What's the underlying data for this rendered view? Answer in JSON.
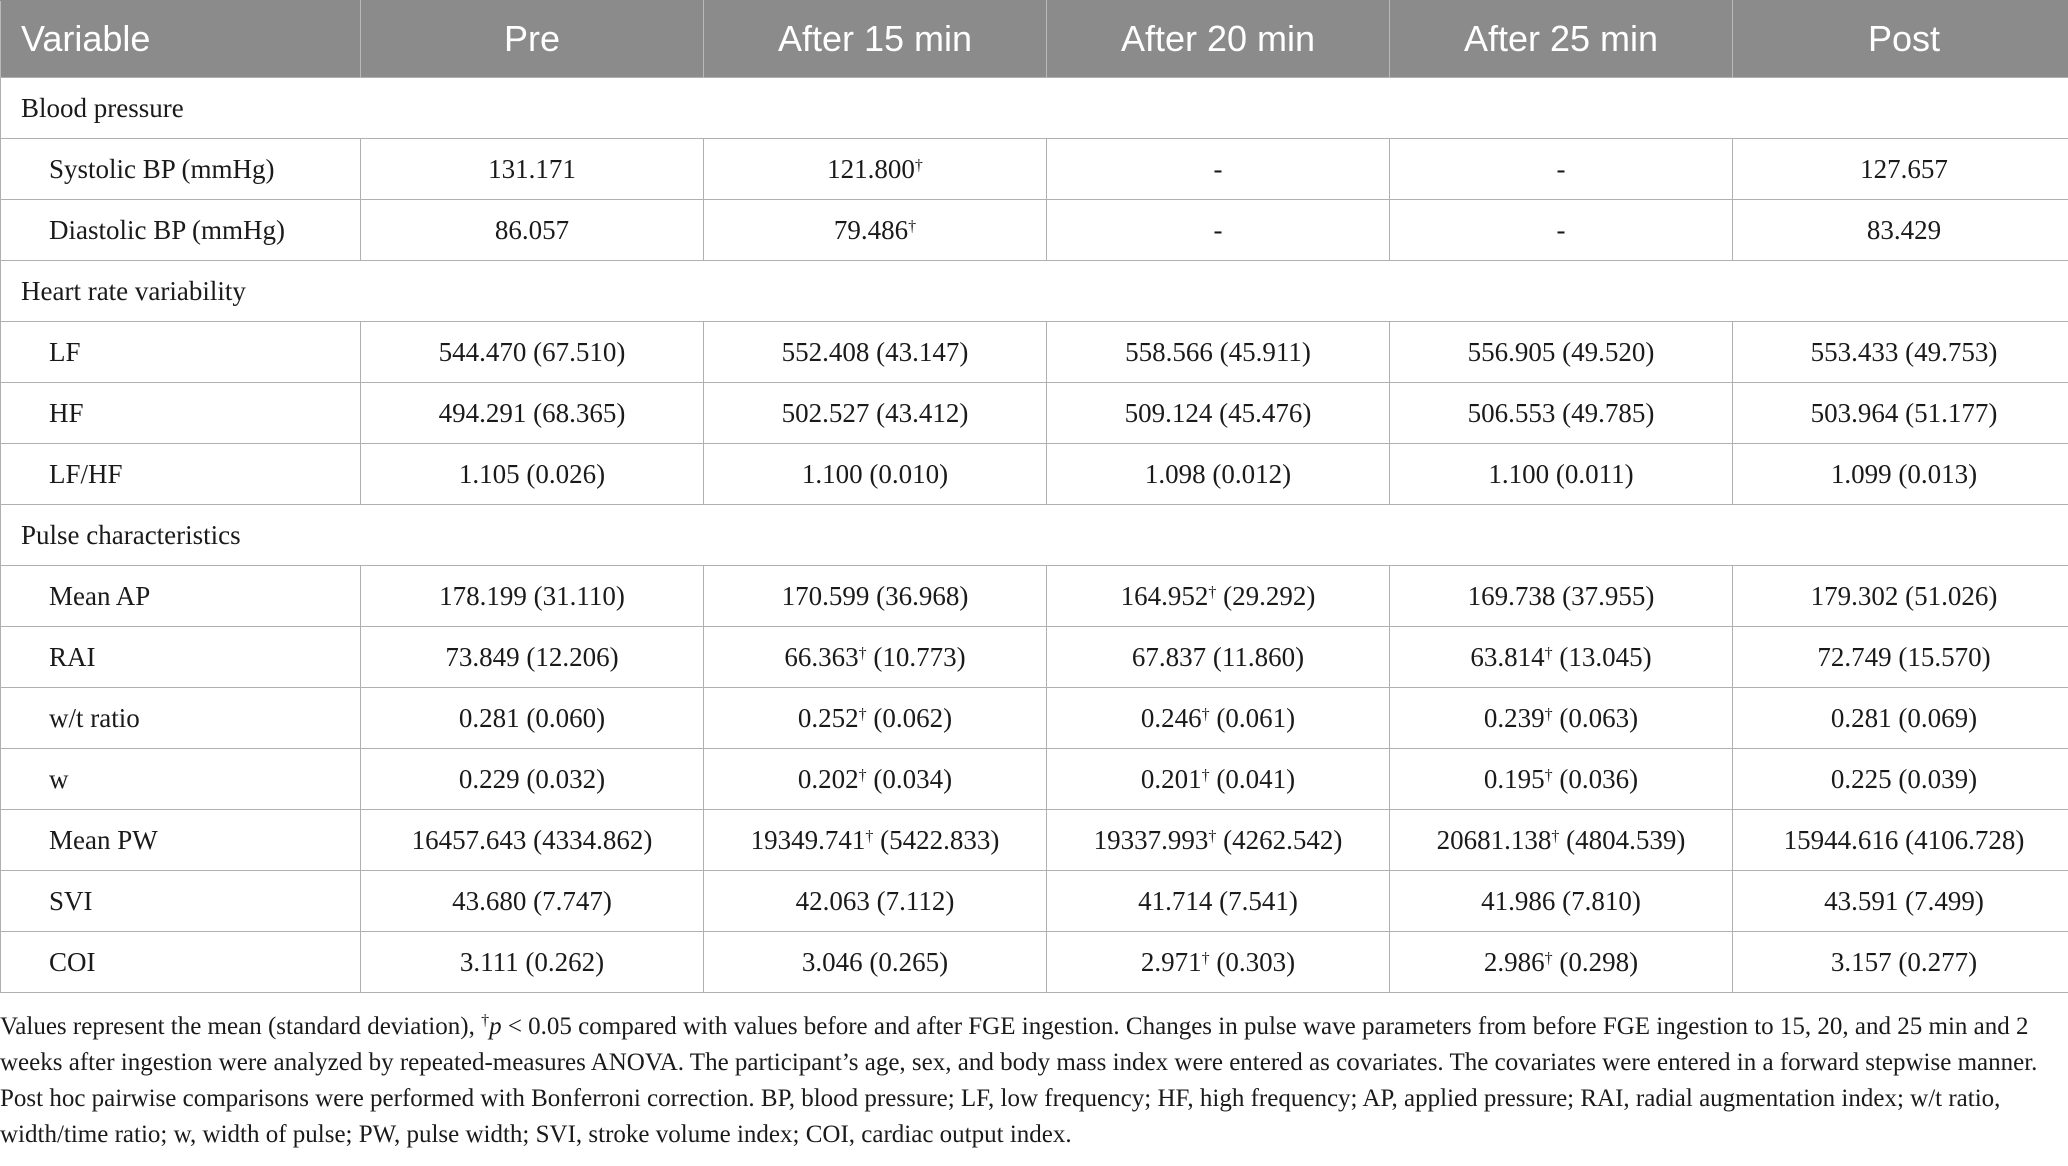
{
  "headers": [
    "Variable",
    "Pre",
    "After 15 min",
    "After 20 min",
    "After 25 min",
    "Post"
  ],
  "dagger": "†",
  "rows": [
    {
      "type": "section",
      "label": "Blood pressure"
    },
    {
      "type": "data",
      "label": "Systolic BP (mmHg)",
      "cells": [
        {
          "v": "131.171"
        },
        {
          "v": "121.800",
          "sig": true
        },
        {
          "v": "-"
        },
        {
          "v": "-"
        },
        {
          "v": "127.657"
        }
      ]
    },
    {
      "type": "data",
      "label": "Diastolic BP (mmHg)",
      "cells": [
        {
          "v": "86.057"
        },
        {
          "v": "79.486",
          "sig": true
        },
        {
          "v": "-"
        },
        {
          "v": "-"
        },
        {
          "v": "83.429"
        }
      ]
    },
    {
      "type": "section",
      "label": "Heart rate variability"
    },
    {
      "type": "data",
      "label": "LF",
      "cells": [
        {
          "v": "544.470",
          "sd": "(67.510)"
        },
        {
          "v": "552.408",
          "sd": "(43.147)"
        },
        {
          "v": "558.566",
          "sd": "(45.911)"
        },
        {
          "v": "556.905",
          "sd": "(49.520)"
        },
        {
          "v": "553.433",
          "sd": "(49.753)"
        }
      ]
    },
    {
      "type": "data",
      "label": "HF",
      "cells": [
        {
          "v": "494.291",
          "sd": "(68.365)"
        },
        {
          "v": "502.527",
          "sd": "(43.412)"
        },
        {
          "v": "509.124",
          "sd": "(45.476)"
        },
        {
          "v": "506.553",
          "sd": "(49.785)"
        },
        {
          "v": "503.964",
          "sd": "(51.177)"
        }
      ]
    },
    {
      "type": "data",
      "label": "LF/HF",
      "cells": [
        {
          "v": "1.105",
          "sd": "(0.026)"
        },
        {
          "v": "1.100",
          "sd": "(0.010)"
        },
        {
          "v": "1.098",
          "sd": "(0.012)"
        },
        {
          "v": "1.100",
          "sd": "(0.011)"
        },
        {
          "v": "1.099",
          "sd": "(0.013)"
        }
      ]
    },
    {
      "type": "section",
      "label": "Pulse characteristics"
    },
    {
      "type": "data",
      "label": "Mean AP",
      "cells": [
        {
          "v": "178.199",
          "sd": "(31.110)"
        },
        {
          "v": "170.599",
          "sd": "(36.968)"
        },
        {
          "v": "164.952",
          "sig": true,
          "sd": "(29.292)"
        },
        {
          "v": "169.738",
          "sd": "(37.955)"
        },
        {
          "v": "179.302",
          "sd": "(51.026)"
        }
      ]
    },
    {
      "type": "data",
      "label": "RAI",
      "cells": [
        {
          "v": "73.849",
          "sd": "(12.206)"
        },
        {
          "v": "66.363",
          "sig": true,
          "sd": "(10.773)"
        },
        {
          "v": "67.837",
          "sd": "(11.860)"
        },
        {
          "v": "63.814",
          "sig": true,
          "sd": "(13.045)"
        },
        {
          "v": "72.749",
          "sd": "(15.570)"
        }
      ]
    },
    {
      "type": "data",
      "label": "w/t ratio",
      "cells": [
        {
          "v": "0.281",
          "sd": "(0.060)"
        },
        {
          "v": "0.252",
          "sig": true,
          "sd": "(0.062)"
        },
        {
          "v": "0.246",
          "sig": true,
          "sd": "(0.061)"
        },
        {
          "v": "0.239",
          "sig": true,
          "sd": "(0.063)"
        },
        {
          "v": "0.281",
          "sd": "(0.069)"
        }
      ]
    },
    {
      "type": "data",
      "label": "w",
      "cells": [
        {
          "v": "0.229",
          "sd": "(0.032)"
        },
        {
          "v": "0.202",
          "sig": true,
          "sd": "(0.034)"
        },
        {
          "v": "0.201",
          "sig": true,
          "sd": "(0.041)"
        },
        {
          "v": "0.195",
          "sig": true,
          "sd": "(0.036)"
        },
        {
          "v": "0.225",
          "sd": "(0.039)"
        }
      ]
    },
    {
      "type": "data",
      "label": "Mean PW",
      "cells": [
        {
          "v": "16457.643",
          "sd": "(4334.862)"
        },
        {
          "v": "19349.741",
          "sig": true,
          "sd": "(5422.833)"
        },
        {
          "v": "19337.993",
          "sig": true,
          "sd": "(4262.542)"
        },
        {
          "v": "20681.138",
          "sig": true,
          "sd": "(4804.539)"
        },
        {
          "v": "15944.616",
          "sd": "(4106.728)"
        }
      ]
    },
    {
      "type": "data",
      "label": "SVI",
      "cells": [
        {
          "v": "43.680",
          "sd": "(7.747)"
        },
        {
          "v": "42.063",
          "sd": "(7.112)"
        },
        {
          "v": "41.714",
          "sd": "(7.541)"
        },
        {
          "v": "41.986",
          "sd": "(7.810)"
        },
        {
          "v": "43.591",
          "sd": "(7.499)"
        }
      ]
    },
    {
      "type": "data",
      "label": "COI",
      "cells": [
        {
          "v": "3.111",
          "sd": "(0.262)"
        },
        {
          "v": "3.046",
          "sd": "(0.265)"
        },
        {
          "v": "2.971",
          "sig": true,
          "sd": "(0.303)"
        },
        {
          "v": "2.986",
          "sig": true,
          "sd": "(0.298)"
        },
        {
          "v": "3.157",
          "sd": "(0.277)"
        }
      ]
    }
  ],
  "footnote": {
    "lead": "Values represent the mean (standard deviation), ",
    "dagger": "†",
    "pvar": "p",
    "rest": " < 0.05 compared with values before and after FGE ingestion. Changes in pulse wave parameters from before FGE ingestion to 15, 20, and 25 min and 2 weeks after ingestion were analyzed by repeated-measures ANOVA. The participant’s age, sex, and body mass index were entered as covariates. The covariates were entered in a forward stepwise manner. Post hoc pairwise comparisons were performed with Bonferroni correction. BP, blood pressure; LF, low frequency; HF, high frequency; AP, applied pressure; RAI, radial augmentation index; w/t ratio, width/time ratio; w, width of pulse; PW, pulse width; SVI, stroke volume index; COI, cardiac output index."
  }
}
